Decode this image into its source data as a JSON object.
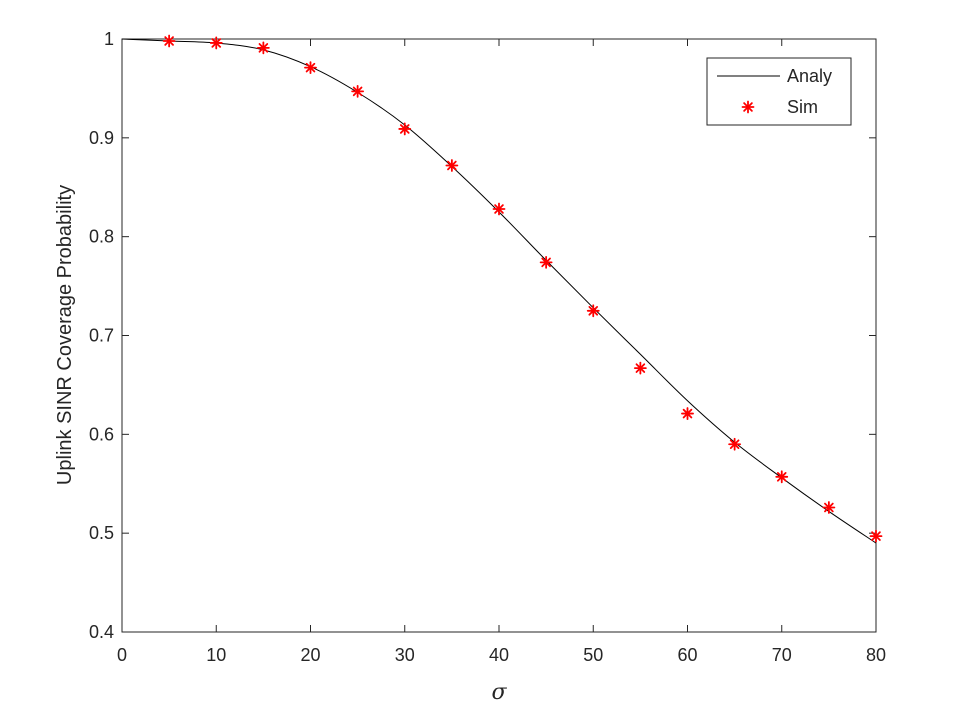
{
  "chart_data": {
    "type": "line",
    "title": "",
    "xlabel": "σ",
    "ylabel": "Uplink SINR Coverage Probability",
    "xlim": [
      0,
      80
    ],
    "ylim": [
      0.4,
      1
    ],
    "xticks": [
      0,
      10,
      20,
      30,
      40,
      50,
      60,
      70,
      80
    ],
    "xtick_labels": [
      "0",
      "10",
      "20",
      "30",
      "40",
      "50",
      "60",
      "70",
      "80"
    ],
    "yticks": [
      0.4,
      0.5,
      0.6,
      0.7,
      0.8,
      0.9,
      1.0
    ],
    "ytick_labels": [
      "0.4",
      "0.5",
      "0.6",
      "0.7",
      "0.8",
      "0.9",
      "1"
    ],
    "grid": false,
    "legend_position": "top-right",
    "series": [
      {
        "name": "Analy",
        "style": "line",
        "color": "#000000",
        "x": [
          0,
          5,
          10,
          15,
          20,
          25,
          30,
          35,
          40,
          45,
          50,
          55,
          60,
          65,
          70,
          75,
          80
        ],
        "y": [
          1.0,
          0.998,
          0.996,
          0.989,
          0.972,
          0.946,
          0.913,
          0.871,
          0.825,
          0.776,
          0.728,
          0.681,
          0.634,
          0.592,
          0.556,
          0.522,
          0.49
        ]
      },
      {
        "name": "Sim",
        "style": "markers",
        "marker": "asterisk",
        "color": "#ff0000",
        "x": [
          5,
          10,
          15,
          20,
          25,
          30,
          35,
          40,
          45,
          50,
          55,
          60,
          65,
          70,
          75,
          80
        ],
        "y": [
          0.998,
          0.996,
          0.991,
          0.971,
          0.947,
          0.909,
          0.872,
          0.828,
          0.774,
          0.725,
          0.667,
          0.621,
          0.59,
          0.557,
          0.526,
          0.497
        ]
      }
    ]
  }
}
